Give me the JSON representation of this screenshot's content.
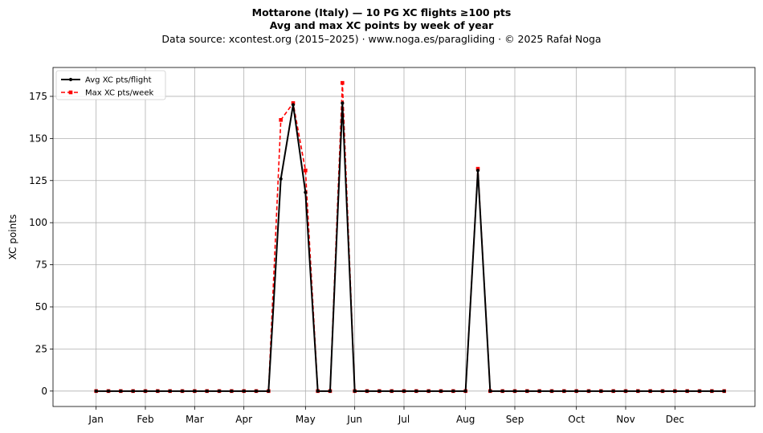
{
  "title": {
    "line1": "Mottarone (Italy)  —  10 PG XC flights ≥100 pts",
    "line2": "Avg and max XC points by week of year",
    "line3": "Data source: xcontest.org (2015–2025)  ·  www.noga.es/paragliding  ·  © 2025 Rafał Noga"
  },
  "chart_data": {
    "type": "line",
    "ylabel": "XC points",
    "xlabel": "",
    "xlim": [
      -2.5,
      54.5
    ],
    "ylim": [
      -9.15,
      192.15
    ],
    "grid": true,
    "legend_position": "top-left",
    "month_ticks": [
      {
        "label": "Jan",
        "week": 1
      },
      {
        "label": "Feb",
        "week": 5
      },
      {
        "label": "Mar",
        "week": 9
      },
      {
        "label": "Apr",
        "week": 13
      },
      {
        "label": "May",
        "week": 18
      },
      {
        "label": "Jun",
        "week": 22
      },
      {
        "label": "Jul",
        "week": 26
      },
      {
        "label": "Aug",
        "week": 31
      },
      {
        "label": "Sep",
        "week": 35
      },
      {
        "label": "Oct",
        "week": 40
      },
      {
        "label": "Nov",
        "week": 44
      },
      {
        "label": "Dec",
        "week": 48
      }
    ],
    "y_ticks": [
      0,
      25,
      50,
      75,
      100,
      125,
      150,
      175
    ],
    "weeks": [
      1,
      2,
      3,
      4,
      5,
      6,
      7,
      8,
      9,
      10,
      11,
      12,
      13,
      14,
      15,
      16,
      17,
      18,
      19,
      20,
      21,
      22,
      23,
      24,
      25,
      26,
      27,
      28,
      29,
      30,
      31,
      32,
      33,
      34,
      35,
      36,
      37,
      38,
      39,
      40,
      41,
      42,
      43,
      44,
      45,
      46,
      47,
      48,
      49,
      50,
      51,
      52
    ],
    "series": [
      {
        "name": "Avg XC pts/flight",
        "color": "#000000",
        "style": "solid",
        "marker": "circle",
        "values": [
          0,
          0,
          0,
          0,
          0,
          0,
          0,
          0,
          0,
          0,
          0,
          0,
          0,
          0,
          0,
          126,
          170,
          118,
          0,
          0,
          171,
          0,
          0,
          0,
          0,
          0,
          0,
          0,
          0,
          0,
          0,
          131,
          0,
          0,
          0,
          0,
          0,
          0,
          0,
          0,
          0,
          0,
          0,
          0,
          0,
          0,
          0,
          0,
          0,
          0,
          0,
          0
        ]
      },
      {
        "name": "Max XC pts/week",
        "color": "#ff0000",
        "style": "dashed",
        "marker": "square",
        "values": [
          0,
          0,
          0,
          0,
          0,
          0,
          0,
          0,
          0,
          0,
          0,
          0,
          0,
          0,
          0,
          161,
          171,
          131,
          0,
          0,
          183,
          0,
          0,
          0,
          0,
          0,
          0,
          0,
          0,
          0,
          0,
          132,
          0,
          0,
          0,
          0,
          0,
          0,
          0,
          0,
          0,
          0,
          0,
          0,
          0,
          0,
          0,
          0,
          0,
          0,
          0,
          0
        ]
      }
    ]
  }
}
